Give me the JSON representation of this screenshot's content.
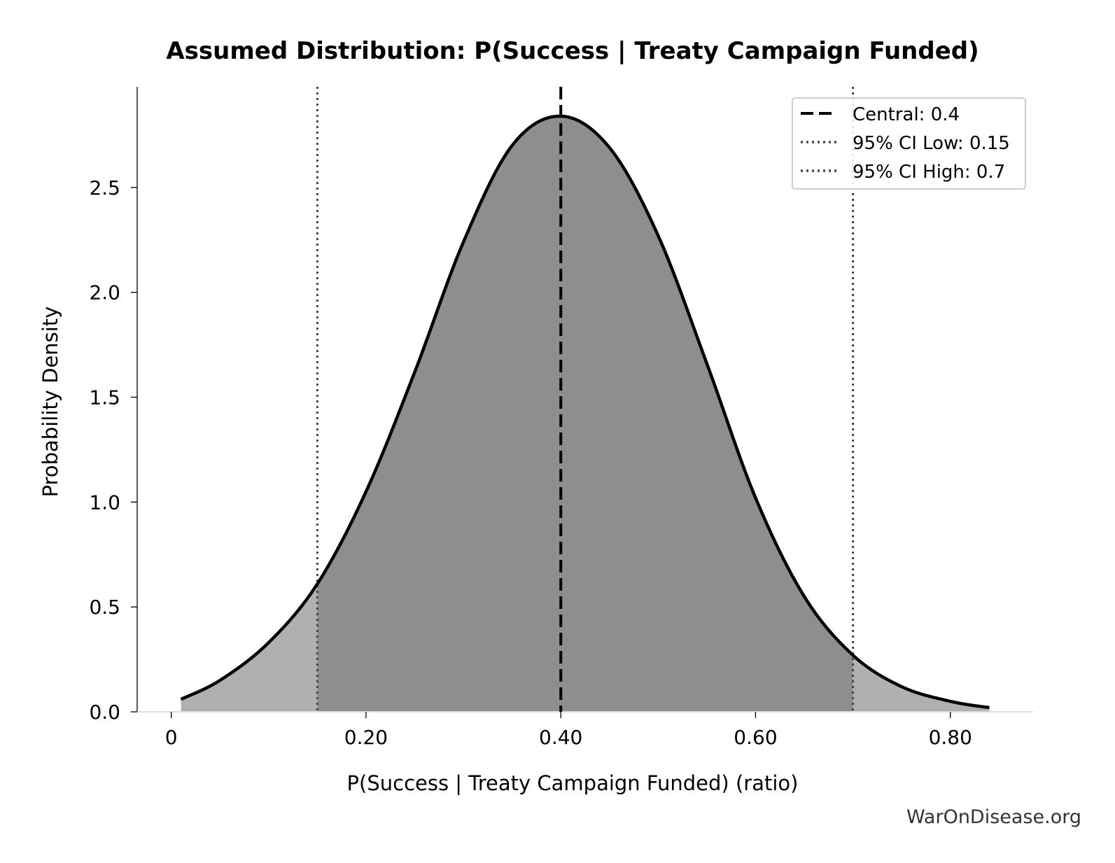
{
  "chart_data": {
    "type": "area",
    "title": "Assumed Distribution: P(Success | Treaty Campaign Funded)",
    "xlabel": "P(Success | Treaty Campaign Funded) (ratio)",
    "ylabel": "Probability Density",
    "xlim": [
      -0.035,
      0.885
    ],
    "ylim": [
      0,
      2.98
    ],
    "x_ticks": [
      {
        "value": 0,
        "label": "0"
      },
      {
        "value": 0.2,
        "label": "0.20"
      },
      {
        "value": 0.4,
        "label": "0.40"
      },
      {
        "value": 0.6,
        "label": "0.60"
      },
      {
        "value": 0.8,
        "label": "0.80"
      }
    ],
    "y_ticks": [
      {
        "value": 0.0,
        "label": "0.0"
      },
      {
        "value": 0.5,
        "label": "0.5"
      },
      {
        "value": 1.0,
        "label": "1.0"
      },
      {
        "value": 1.5,
        "label": "1.5"
      },
      {
        "value": 2.0,
        "label": "2.0"
      },
      {
        "value": 2.5,
        "label": "2.5"
      }
    ],
    "curve": {
      "x": [
        0.01,
        0.05,
        0.1,
        0.15,
        0.2,
        0.25,
        0.3,
        0.35,
        0.4,
        0.45,
        0.5,
        0.55,
        0.6,
        0.65,
        0.7,
        0.75,
        0.8,
        0.84
      ],
      "y": [
        0.06,
        0.15,
        0.33,
        0.61,
        1.05,
        1.62,
        2.24,
        2.7,
        2.84,
        2.69,
        2.27,
        1.66,
        1.02,
        0.55,
        0.27,
        0.12,
        0.05,
        0.02
      ]
    },
    "fill_colors": {
      "tails": "#b0b0b0",
      "ci_region": "#8e8e8e"
    },
    "reference_lines": [
      {
        "value": 0.4,
        "style": "dashed",
        "color": "#000000",
        "label": "Central: 0.4"
      },
      {
        "value": 0.15,
        "style": "dotted",
        "color": "#444444",
        "label": "95% CI Low: 0.15"
      },
      {
        "value": 0.7,
        "style": "dotted",
        "color": "#444444",
        "label": "95% CI High: 0.7"
      }
    ],
    "legend_position": "top-right",
    "grid": false,
    "watermark": "WarOnDisease.org"
  }
}
